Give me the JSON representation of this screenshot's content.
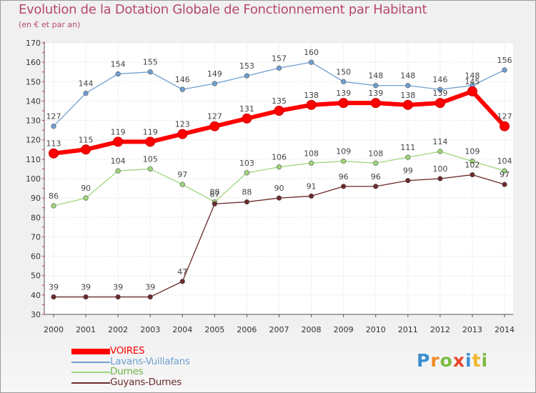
{
  "header": {
    "title": "Evolution de la Dotation Globale de Fonctionnement par Habitant",
    "subtitle": "(en € et par an)"
  },
  "brand": {
    "letters": [
      {
        "char": "P",
        "color": "#3b8fd1"
      },
      {
        "char": "r",
        "color": "#f08a24"
      },
      {
        "char": "o",
        "color": "#7dbb42"
      },
      {
        "char": "x",
        "color": "#e8452c"
      },
      {
        "char": "i",
        "color": "#3b8fd1"
      },
      {
        "char": "t",
        "color": "#f0b52a"
      },
      {
        "char": "i",
        "color": "#7dbb42"
      }
    ]
  },
  "chart_data": {
    "type": "line",
    "x": [
      "2000",
      "2001",
      "2002",
      "2003",
      "2004",
      "2005",
      "2006",
      "2007",
      "2008",
      "2009",
      "2010",
      "2011",
      "2012",
      "2013",
      "2014"
    ],
    "ylim": [
      30,
      170
    ],
    "yticks": [
      30,
      40,
      50,
      60,
      70,
      80,
      90,
      100,
      110,
      120,
      130,
      140,
      150,
      160,
      170
    ],
    "grid": true,
    "legend_position": "bottom-left",
    "series": [
      {
        "name": "Lavans-Vuillafans",
        "color": "#6f9fd0",
        "values": [
          127,
          144,
          154,
          155,
          146,
          149,
          153,
          157,
          160,
          150,
          148,
          148,
          146,
          148,
          156
        ]
      },
      {
        "name": "Durnes",
        "color": "#9ed67a",
        "values": [
          86,
          90,
          104,
          105,
          97,
          88,
          103,
          106,
          108,
          109,
          108,
          111,
          114,
          109,
          104
        ]
      },
      {
        "name": "Guyans-Durnes",
        "color": "#6b2a2a",
        "values": [
          39,
          39,
          39,
          39,
          47,
          87,
          88,
          90,
          91,
          96,
          96,
          99,
          100,
          102,
          97
        ]
      },
      {
        "name": "VOIRES",
        "color": "#ff0000",
        "values": [
          113,
          115,
          119,
          119,
          123,
          127,
          131,
          135,
          138,
          139,
          139,
          138,
          139,
          145,
          127
        ]
      }
    ],
    "legend_order": [
      "VOIRES",
      "Lavans-Vuillafans",
      "Durnes",
      "Guyans-Durnes"
    ]
  }
}
